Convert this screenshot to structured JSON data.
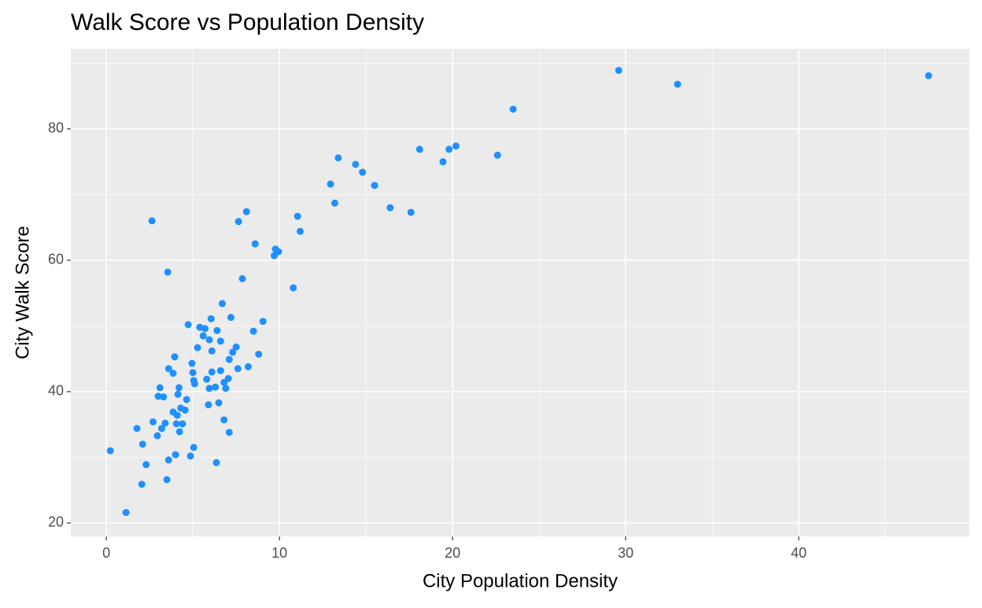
{
  "chart_data": {
    "type": "scatter",
    "title": "Walk Score vs Population Density",
    "x_label": "City Population Density",
    "y_label": "City Walk Score",
    "color": "#1e90ff",
    "grid": true,
    "xlim": [
      -2.05,
      49.86
    ],
    "ylim": [
      17.96,
      92.2
    ],
    "xticks": [
      0,
      10,
      20,
      30,
      40
    ],
    "yticks": [
      20,
      40,
      60,
      80
    ],
    "x": [
      0.23,
      1.14,
      1.77,
      2.1,
      2.05,
      2.3,
      2.64,
      2.7,
      2.95,
      3.1,
      3.0,
      3.2,
      3.3,
      3.4,
      3.5,
      3.55,
      3.6,
      3.6,
      3.86,
      3.95,
      3.86,
      4.0,
      4.05,
      4.1,
      4.2,
      4.14,
      4.23,
      4.3,
      4.4,
      4.55,
      4.64,
      4.73,
      4.86,
      4.95,
      5.0,
      5.05,
      5.1,
      5.05,
      5.27,
      5.4,
      5.6,
      5.7,
      5.8,
      5.9,
      5.95,
      5.95,
      6.05,
      6.1,
      6.1,
      6.3,
      6.36,
      6.4,
      6.5,
      6.6,
      6.6,
      6.7,
      6.8,
      6.8,
      6.9,
      7.05,
      7.1,
      7.1,
      7.2,
      7.3,
      7.5,
      7.6,
      7.64,
      7.86,
      8.1,
      8.2,
      8.5,
      8.6,
      8.8,
      9.05,
      9.7,
      9.77,
      9.95,
      10.8,
      11.05,
      11.2,
      12.95,
      13.2,
      13.4,
      14.4,
      14.8,
      15.5,
      16.4,
      17.6,
      18.1,
      19.45,
      19.8,
      20.2,
      22.6,
      23.5,
      29.6,
      33.0,
      47.5
    ],
    "y": [
      31.0,
      21.6,
      34.4,
      32.0,
      25.9,
      28.9,
      66.0,
      35.4,
      33.3,
      40.6,
      39.3,
      34.4,
      39.2,
      35.2,
      26.6,
      58.2,
      29.6,
      43.5,
      42.8,
      45.3,
      36.9,
      30.4,
      35.1,
      36.4,
      40.6,
      39.6,
      33.9,
      37.5,
      35.1,
      37.2,
      38.8,
      50.2,
      30.2,
      44.3,
      42.9,
      41.7,
      41.2,
      31.5,
      46.7,
      49.8,
      48.5,
      49.6,
      41.9,
      38.0,
      40.5,
      47.9,
      51.1,
      46.2,
      43.0,
      40.7,
      29.2,
      49.3,
      38.3,
      43.2,
      47.7,
      53.4,
      41.4,
      35.7,
      40.5,
      42.0,
      44.9,
      33.8,
      51.3,
      46.0,
      46.8,
      43.5,
      65.9,
      57.2,
      67.4,
      43.8,
      49.2,
      62.5,
      45.7,
      50.7,
      60.7,
      61.7,
      61.3,
      55.8,
      66.7,
      64.4,
      71.6,
      68.7,
      75.6,
      74.6,
      73.4,
      71.4,
      68.0,
      67.3,
      76.9,
      75.0,
      76.9,
      77.4,
      76.0,
      83.0,
      88.9,
      86.8,
      88.1
    ]
  }
}
